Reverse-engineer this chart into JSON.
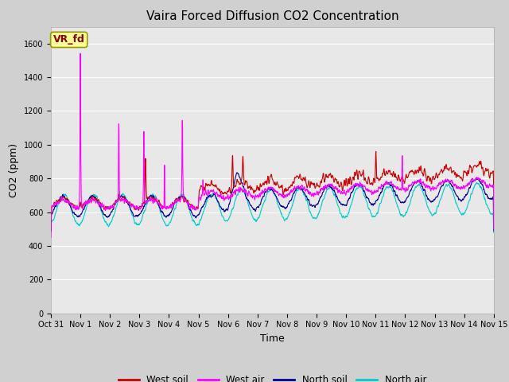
{
  "title": "Vaira Forced Diffusion CO2 Concentration",
  "xlabel": "Time",
  "ylabel": "CO2 (ppm)",
  "ylim": [
    0,
    1700
  ],
  "yticks": [
    0,
    200,
    400,
    600,
    800,
    1000,
    1200,
    1400,
    1600
  ],
  "xtick_labels": [
    "Oct 31",
    "Nov 1",
    "Nov 2",
    "Nov 3",
    "Nov 4",
    "Nov 5",
    "Nov 6",
    "Nov 7",
    "Nov 8",
    "Nov 9",
    "Nov 10",
    "Nov 11",
    "Nov 12",
    "Nov 13",
    "Nov 14",
    "Nov 15"
  ],
  "legend_labels": [
    "West soil",
    "West air",
    "North soil",
    "North air"
  ],
  "line_colors": {
    "west_soil": "#cc0000",
    "west_air": "#ff00ff",
    "north_soil": "#000099",
    "north_air": "#00cccc"
  },
  "annotation_text": "VR_fd",
  "annotation_bg": "#ffff99",
  "annotation_border": "#999900",
  "fig_bg": "#d0d0d0",
  "plot_bg": "#e8e8e8",
  "title_fontsize": 11,
  "axis_fontsize": 9,
  "tick_fontsize": 7,
  "seed": 42,
  "n_points": 2016
}
